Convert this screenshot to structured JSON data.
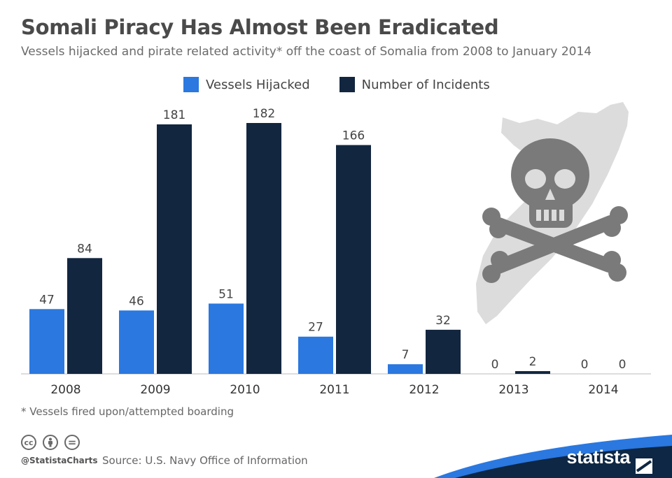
{
  "title": "Somali Piracy Has Almost Been Eradicated",
  "subtitle": "Vessels hijacked and pirate related activity* off the coast of Somalia from 2008 to January 2014",
  "footnote": "* Vessels fired upon/attempted boarding",
  "handle": "@StatistaCharts",
  "source": "Source: U.S. Navy Office of Information",
  "brand": "statista",
  "icons": {
    "creative_commons": "cc-icon",
    "attribution": "person-icon",
    "no_derivatives": "equals-icon",
    "illustration": "skull-crossbones-somalia-map-icon",
    "logo": "statista-logo-icon"
  },
  "icon_text": {
    "cc": "cc",
    "equals": "="
  },
  "colors": {
    "hijacked": "#2a78e0",
    "incidents": "#12263f",
    "map": "#dcdcdc",
    "skull": "#7a7a7a",
    "brand_band": "#0d2744",
    "brand_accent": "#2a78e0"
  },
  "chart_data": {
    "type": "bar",
    "title": "Somali Piracy Has Almost Been Eradicated",
    "categories": [
      "2008",
      "2009",
      "2010",
      "2011",
      "2012",
      "2013",
      "2014"
    ],
    "series": [
      {
        "name": "Vessels Hijacked",
        "values": [
          47,
          46,
          51,
          27,
          7,
          0,
          0
        ]
      },
      {
        "name": "Number of Incidents",
        "values": [
          84,
          181,
          182,
          166,
          32,
          2,
          0
        ]
      }
    ],
    "ylim": [
      0,
      182
    ],
    "grid": false,
    "legend": "top-center",
    "data_labels": true
  }
}
